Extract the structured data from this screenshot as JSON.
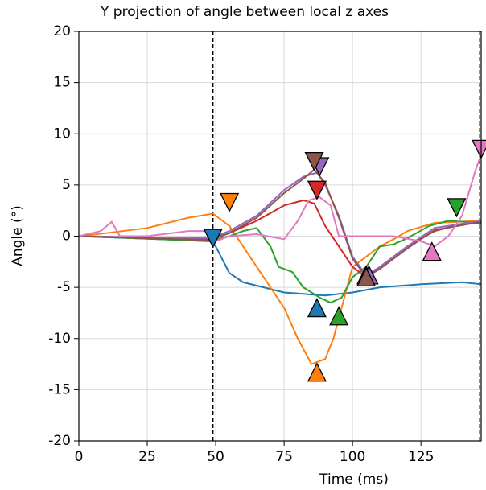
{
  "chart_data": {
    "type": "line",
    "title": "Y projection of angle between local z axes",
    "xlabel": "Time (ms)",
    "ylabel": "Angle (°)",
    "xlim": [
      0,
      147
    ],
    "ylim": [
      -20,
      20
    ],
    "xticks": [
      0,
      25,
      50,
      75,
      100,
      125
    ],
    "yticks": [
      -20,
      -15,
      -10,
      -5,
      0,
      5,
      10,
      15,
      20
    ],
    "grid": true,
    "vlines": [
      49,
      146.5
    ],
    "series": [
      {
        "color": "#1f77b4",
        "x": [
          0,
          20,
          40,
          48,
          50,
          55,
          60,
          75,
          90,
          100,
          110,
          125,
          140,
          147
        ],
        "values": [
          0,
          -0.2,
          -0.4,
          -0.5,
          -1,
          -3.6,
          -4.5,
          -5.5,
          -5.8,
          -5.5,
          -5,
          -4.7,
          -4.5,
          -4.7
        ],
        "marker_down": [
          49,
          -0.2
        ],
        "marker_up": [
          87,
          -7
        ]
      },
      {
        "color": "#ff7f0e",
        "x": [
          0,
          10,
          25,
          40,
          49,
          55,
          60,
          65,
          70,
          75,
          80,
          85,
          90,
          93,
          97,
          100,
          105,
          110,
          115,
          120,
          130,
          147
        ],
        "values": [
          0,
          0.3,
          0.8,
          1.8,
          2.2,
          1,
          -1,
          -3,
          -5,
          -7,
          -10,
          -12.5,
          -12,
          -10,
          -6,
          -3,
          -2,
          -1,
          -0.3,
          0.5,
          1.3,
          1.5
        ],
        "marker_down": [
          55,
          3.3
        ],
        "marker_up": [
          87,
          -13.3
        ]
      },
      {
        "color": "#2ca02c",
        "x": [
          0,
          30,
          48,
          55,
          60,
          65,
          70,
          73,
          78,
          82,
          88,
          92,
          96,
          100,
          105,
          110,
          115,
          120,
          128,
          135,
          147
        ],
        "values": [
          0,
          -0.3,
          -0.5,
          0,
          0.5,
          0.8,
          -1,
          -3,
          -3.5,
          -5,
          -6,
          -6.5,
          -6,
          -4,
          -3,
          -1,
          -0.8,
          -0.2,
          1,
          1.5,
          1.3
        ],
        "marker_down": [
          138,
          2.8
        ],
        "marker_up": [
          95,
          -7.8
        ]
      },
      {
        "color": "#d62728",
        "x": [
          0,
          48,
          55,
          65,
          75,
          82,
          86,
          90,
          95,
          100,
          105,
          110,
          120,
          130,
          140,
          147
        ],
        "values": [
          0,
          -0.3,
          0.3,
          1.5,
          3,
          3.5,
          3.2,
          1,
          -1,
          -3,
          -4,
          -3,
          -1,
          0.5,
          1.2,
          1.3
        ],
        "marker_down": [
          87,
          4.5
        ],
        "marker_up": [
          105,
          -3.8
        ]
      },
      {
        "color": "#9467bd",
        "x": [
          0,
          48,
          55,
          65,
          75,
          82,
          87,
          90,
          95,
          100,
          105,
          110,
          120,
          130,
          147
        ],
        "values": [
          0,
          -0.2,
          0.5,
          2,
          4.5,
          5.8,
          6.2,
          5,
          2,
          -2,
          -3.8,
          -3,
          -1,
          0.8,
          1.5
        ],
        "marker_down": [
          88,
          6.8
        ],
        "marker_up": [
          106,
          -3.8
        ]
      },
      {
        "color": "#8c564b",
        "x": [
          0,
          48,
          55,
          65,
          75,
          82,
          86,
          90,
          95,
          100,
          105,
          110,
          120,
          130,
          147
        ],
        "values": [
          0,
          -0.4,
          0.3,
          1.8,
          4.2,
          5.6,
          6.5,
          5.2,
          1.8,
          -2.2,
          -4,
          -3.2,
          -1.2,
          0.6,
          1.4
        ],
        "marker_down": [
          86,
          7.3
        ],
        "marker_up": [
          105,
          -4
        ]
      },
      {
        "color": "#e377c2",
        "x": [
          0,
          8,
          12,
          15,
          25,
          40,
          48,
          50,
          55,
          65,
          75,
          80,
          84,
          88,
          92,
          95,
          105,
          115,
          125,
          130,
          135,
          140,
          145,
          147
        ],
        "values": [
          0,
          0.5,
          1.4,
          0,
          0,
          0.5,
          0.5,
          -0.5,
          0,
          0.2,
          -0.3,
          1.5,
          3.5,
          3.8,
          3,
          0,
          0,
          0,
          -0.5,
          -1,
          0,
          2,
          6.5,
          8
        ],
        "marker_down": [
          147,
          8.5
        ],
        "marker_up": [
          129,
          -1.5
        ]
      }
    ]
  }
}
